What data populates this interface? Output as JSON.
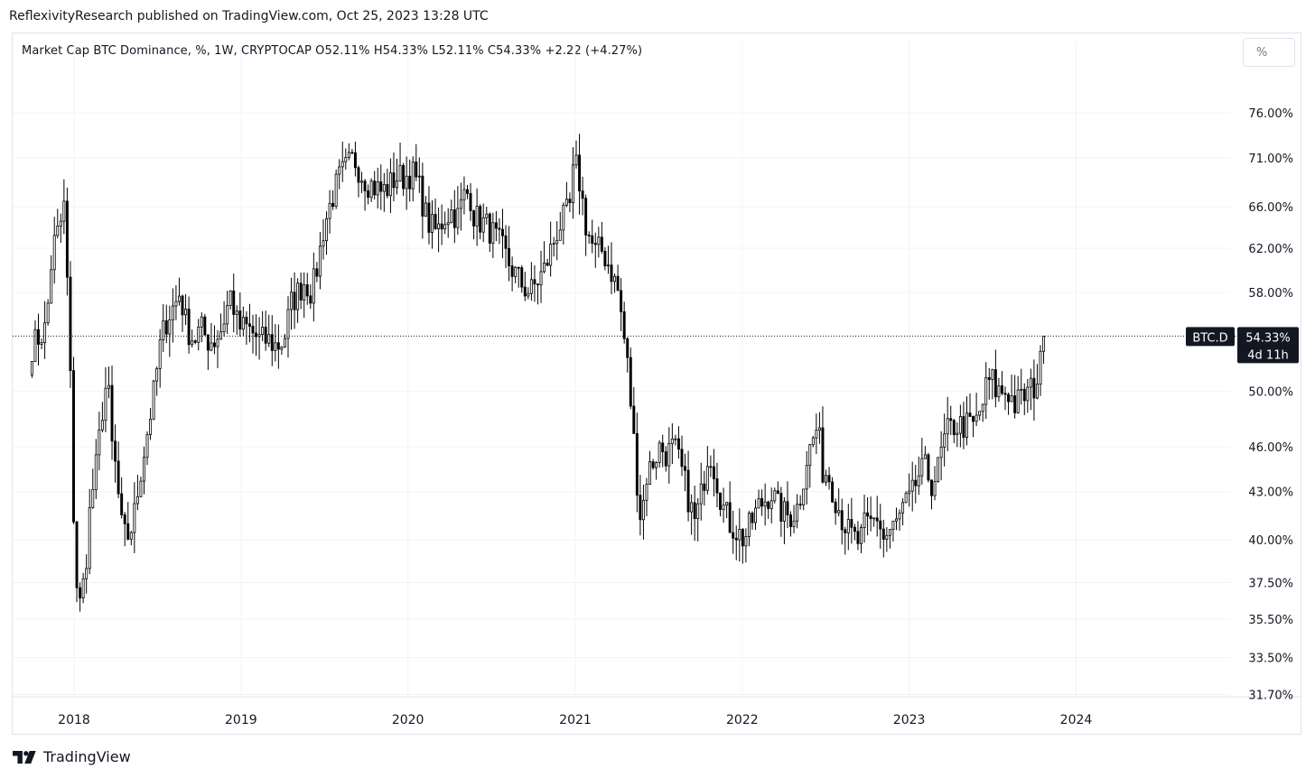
{
  "header": {
    "text": "ReflexivityResearch published on TradingView.com, Oct 25, 2023 13:28 UTC"
  },
  "legend": {
    "text": "Market Cap BTC Dominance, %, 1W, CRYPTOCAP  O52.11%  H54.33%  L52.11%  C54.33%  +2.22 (+4.27%)"
  },
  "scale_button": {
    "label": "%"
  },
  "footer": {
    "brand": "TradingView"
  },
  "chart_data": {
    "type": "candlestick",
    "title": "Market Cap BTC Dominance",
    "interval": "1W",
    "exchange": "CRYPTOCAP",
    "unit": "%",
    "log_scale": true,
    "grid": true,
    "ohlc": {
      "open": 52.11,
      "high": 54.33,
      "low": 52.11,
      "close": 54.33,
      "change": 2.22,
      "change_pct": 4.27
    },
    "x_ticks": [
      "2018",
      "2019",
      "2020",
      "2021",
      "2022",
      "2023",
      "2024"
    ],
    "y_ticks": [
      "76.00%",
      "71.00%",
      "66.00%",
      "62.00%",
      "58.00%",
      "50.00%",
      "46.00%",
      "43.00%",
      "40.00%",
      "37.50%",
      "35.50%",
      "33.50%",
      "31.70%"
    ],
    "y_tick_values": [
      76,
      71,
      66,
      62,
      58,
      50,
      46,
      43,
      40,
      37.5,
      35.5,
      33.5,
      31.7
    ],
    "last_price": {
      "symbol": "BTC.D",
      "value": "54.33%",
      "countdown": "4d 11h",
      "level": 54.33
    },
    "colors": {
      "up": "#ffffff",
      "down": "#000000",
      "outline": "#000000",
      "grid": "#f0f3fa",
      "axis_text": "#131722"
    },
    "series_anchors": [
      [
        "2017-10-01",
        53.5
      ],
      [
        "2017-11-01",
        55
      ],
      [
        "2017-11-15",
        62
      ],
      [
        "2017-12-01",
        64
      ],
      [
        "2017-12-10",
        66
      ],
      [
        "2017-12-22",
        54
      ],
      [
        "2017-12-29",
        43
      ],
      [
        "2018-01-05",
        38
      ],
      [
        "2018-01-12",
        36
      ],
      [
        "2018-01-25",
        38
      ],
      [
        "2018-02-05",
        42
      ],
      [
        "2018-02-20",
        45
      ],
      [
        "2018-03-05",
        49
      ],
      [
        "2018-03-15",
        51
      ],
      [
        "2018-03-25",
        46
      ],
      [
        "2018-04-05",
        44
      ],
      [
        "2018-04-12",
        41
      ],
      [
        "2018-04-25",
        40
      ],
      [
        "2018-05-10",
        41
      ],
      [
        "2018-05-25",
        44
      ],
      [
        "2018-06-10",
        47
      ],
      [
        "2018-06-25",
        50
      ],
      [
        "2018-07-10",
        54
      ],
      [
        "2018-07-25",
        56
      ],
      [
        "2018-08-10",
        57
      ],
      [
        "2018-08-20",
        58
      ],
      [
        "2018-09-05",
        55
      ],
      [
        "2018-09-20",
        54
      ],
      [
        "2018-10-05",
        55
      ],
      [
        "2018-10-20",
        54
      ],
      [
        "2018-11-05",
        54
      ],
      [
        "2018-11-20",
        55
      ],
      [
        "2018-12-10",
        58
      ],
      [
        "2018-12-25",
        55
      ],
      [
        "2019-01-15",
        55
      ],
      [
        "2019-02-10",
        54
      ],
      [
        "2019-03-01",
        54
      ],
      [
        "2019-03-20",
        53.5
      ],
      [
        "2019-04-05",
        54
      ],
      [
        "2019-04-20",
        57
      ],
      [
        "2019-05-05",
        58
      ],
      [
        "2019-05-20",
        59
      ],
      [
        "2019-06-05",
        58
      ],
      [
        "2019-06-20",
        61
      ],
      [
        "2019-07-01",
        64
      ],
      [
        "2019-07-20",
        67
      ],
      [
        "2019-08-05",
        69
      ],
      [
        "2019-08-20",
        70
      ],
      [
        "2019-09-05",
        71
      ],
      [
        "2019-09-20",
        69.5
      ],
      [
        "2019-10-05",
        68.5
      ],
      [
        "2019-10-20",
        68
      ],
      [
        "2019-11-05",
        67.5
      ],
      [
        "2019-11-20",
        68
      ],
      [
        "2019-12-05",
        69
      ],
      [
        "2019-12-25",
        69
      ],
      [
        "2020-01-10",
        69.5
      ],
      [
        "2020-01-25",
        68
      ],
      [
        "2020-02-10",
        65
      ],
      [
        "2020-02-20",
        64
      ],
      [
        "2020-03-05",
        63.5
      ],
      [
        "2020-03-20",
        65
      ],
      [
        "2020-04-05",
        65.5
      ],
      [
        "2020-04-20",
        65
      ],
      [
        "2020-05-01",
        67
      ],
      [
        "2020-05-15",
        67.5
      ],
      [
        "2020-05-25",
        65
      ],
      [
        "2020-06-10",
        64.5
      ],
      [
        "2020-06-25",
        64
      ],
      [
        "2020-07-10",
        63
      ],
      [
        "2020-07-25",
        62
      ],
      [
        "2020-08-10",
        60.5
      ],
      [
        "2020-08-25",
        59.5
      ],
      [
        "2020-09-10",
        58.5
      ],
      [
        "2020-09-25",
        58
      ],
      [
        "2020-10-10",
        59
      ],
      [
        "2020-10-25",
        60
      ],
      [
        "2020-11-10",
        62
      ],
      [
        "2020-11-25",
        64
      ],
      [
        "2020-12-10",
        65
      ],
      [
        "2020-12-20",
        66
      ],
      [
        "2020-12-29",
        70
      ],
      [
        "2021-01-05",
        70
      ],
      [
        "2021-01-15",
        67
      ],
      [
        "2021-01-25",
        64
      ],
      [
        "2021-02-05",
        62.5
      ],
      [
        "2021-02-15",
        61.5
      ],
      [
        "2021-02-25",
        62
      ],
      [
        "2021-03-10",
        61
      ],
      [
        "2021-03-20",
        60
      ],
      [
        "2021-04-05",
        58
      ],
      [
        "2021-04-15",
        55
      ],
      [
        "2021-04-25",
        52
      ],
      [
        "2021-05-05",
        48
      ],
      [
        "2021-05-15",
        44
      ],
      [
        "2021-05-25",
        41
      ],
      [
        "2021-06-05",
        44
      ],
      [
        "2021-06-20",
        45
      ],
      [
        "2021-07-05",
        46
      ],
      [
        "2021-07-20",
        45.5
      ],
      [
        "2021-08-05",
        46
      ],
      [
        "2021-08-25",
        44
      ],
      [
        "2021-09-10",
        42
      ],
      [
        "2021-09-20",
        41
      ],
      [
        "2021-10-05",
        43
      ],
      [
        "2021-10-20",
        46
      ],
      [
        "2021-11-05",
        44
      ],
      [
        "2021-11-20",
        42
      ],
      [
        "2021-12-05",
        41
      ],
      [
        "2021-12-20",
        40.5
      ],
      [
        "2022-01-05",
        40
      ],
      [
        "2022-01-20",
        41
      ],
      [
        "2022-02-05",
        42
      ],
      [
        "2022-02-20",
        42.5
      ],
      [
        "2022-03-05",
        43
      ],
      [
        "2022-03-20",
        42
      ],
      [
        "2022-04-05",
        41.5
      ],
      [
        "2022-04-20",
        41.5
      ],
      [
        "2022-05-01",
        42
      ],
      [
        "2022-05-10",
        43
      ],
      [
        "2022-05-20",
        45
      ],
      [
        "2022-06-05",
        46.5
      ],
      [
        "2022-06-15",
        47.5
      ],
      [
        "2022-06-25",
        44.5
      ],
      [
        "2022-07-10",
        44
      ],
      [
        "2022-07-25",
        42.5
      ],
      [
        "2022-08-05",
        41.5
      ],
      [
        "2022-08-20",
        40.5
      ],
      [
        "2022-09-05",
        40
      ],
      [
        "2022-09-15",
        39.8
      ],
      [
        "2022-09-25",
        40.8
      ],
      [
        "2022-10-10",
        41
      ],
      [
        "2022-10-25",
        41.5
      ],
      [
        "2022-11-05",
        40
      ],
      [
        "2022-11-20",
        40.5
      ],
      [
        "2022-12-05",
        41
      ],
      [
        "2022-12-20",
        42
      ],
      [
        "2023-01-05",
        42.5
      ],
      [
        "2023-01-20",
        44
      ],
      [
        "2023-02-05",
        44.5
      ],
      [
        "2023-02-20",
        43.5
      ],
      [
        "2023-03-05",
        44.5
      ],
      [
        "2023-03-15",
        46
      ],
      [
        "2023-03-25",
        47
      ],
      [
        "2023-04-10",
        47.5
      ],
      [
        "2023-04-25",
        47.5
      ],
      [
        "2023-05-10",
        47.5
      ],
      [
        "2023-05-25",
        47.5
      ],
      [
        "2023-06-10",
        49
      ],
      [
        "2023-06-20",
        50.5
      ],
      [
        "2023-06-30",
        51
      ],
      [
        "2023-07-10",
        50
      ],
      [
        "2023-07-20",
        50
      ],
      [
        "2023-08-05",
        50
      ],
      [
        "2023-08-20",
        49
      ],
      [
        "2023-09-05",
        49.5
      ],
      [
        "2023-09-20",
        50
      ],
      [
        "2023-10-05",
        50.5
      ],
      [
        "2023-10-15",
        52.11
      ],
      [
        "2023-10-23",
        54.33
      ]
    ]
  }
}
